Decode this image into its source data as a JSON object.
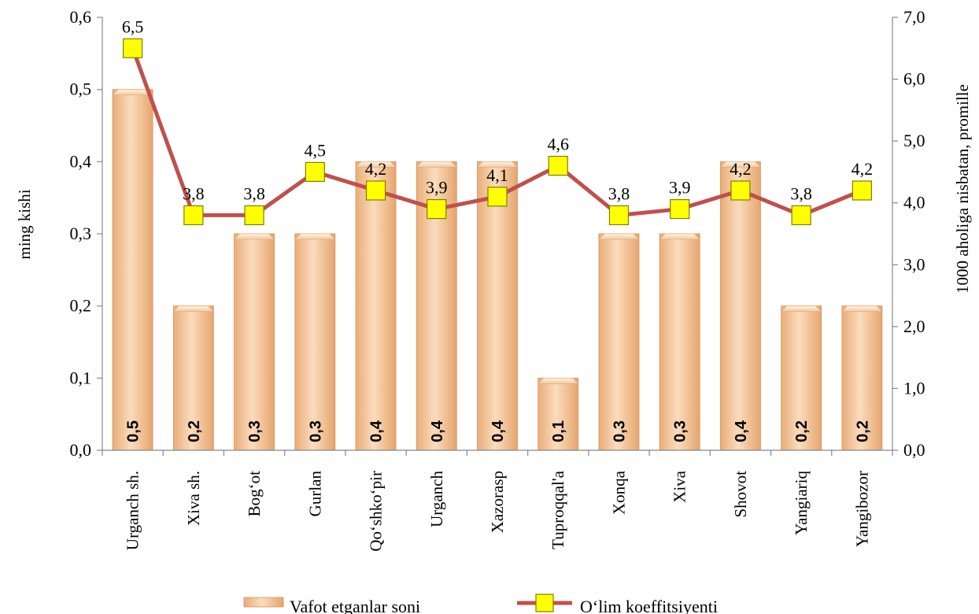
{
  "chart_data": {
    "type": "bar",
    "categories": [
      "Urganch sh.",
      "Xiva sh.",
      "Bog‘ot",
      "Gurlan",
      "Qo‘shko‘pir",
      "Urganch",
      "Xazorasp",
      "Tuproqqal'a",
      "Xonqa",
      "Xiva",
      "Shovot",
      "Yangiariq",
      "Yangibozor"
    ],
    "series": [
      {
        "name": "Vafot etganlar soni",
        "type": "bar",
        "axis": "left",
        "values": [
          0.5,
          0.2,
          0.3,
          0.3,
          0.4,
          0.4,
          0.4,
          0.1,
          0.3,
          0.3,
          0.4,
          0.2,
          0.2
        ],
        "labels": [
          "0,5",
          "0,2",
          "0,3",
          "0,3",
          "0,4",
          "0,4",
          "0,4",
          "0,1",
          "0,3",
          "0,3",
          "0,4",
          "0,2",
          "0,2"
        ],
        "color": "#f6c79a"
      },
      {
        "name": "O‘lim koeffitsiyenti",
        "type": "line",
        "axis": "right",
        "values": [
          6.5,
          3.8,
          3.8,
          4.5,
          4.2,
          3.9,
          4.1,
          4.6,
          3.8,
          3.9,
          4.2,
          3.8,
          4.2
        ],
        "labels": [
          "6,5",
          "3,8",
          "3,8",
          "4,5",
          "4,2",
          "3,9",
          "4,1",
          "4,6",
          "3,8",
          "3,9",
          "4,2",
          "3,8",
          "4,2"
        ],
        "color": "#c0504d",
        "marker_color": "#ffff00"
      }
    ],
    "ylabel": "ming kishi",
    "y2label": "1000 aholiga nisbatan, promille",
    "ylim": [
      0,
      0.6
    ],
    "y2lim": [
      0,
      7.0
    ],
    "yticks": [
      "0,0",
      "0,1",
      "0,2",
      "0,3",
      "0,4",
      "0,5",
      "0,6"
    ],
    "y2ticks": [
      "0,0",
      "1,0",
      "2,0",
      "3,0",
      "4,0",
      "5,0",
      "6,0",
      "7,0"
    ],
    "grid": false,
    "legend_position": "bottom"
  }
}
